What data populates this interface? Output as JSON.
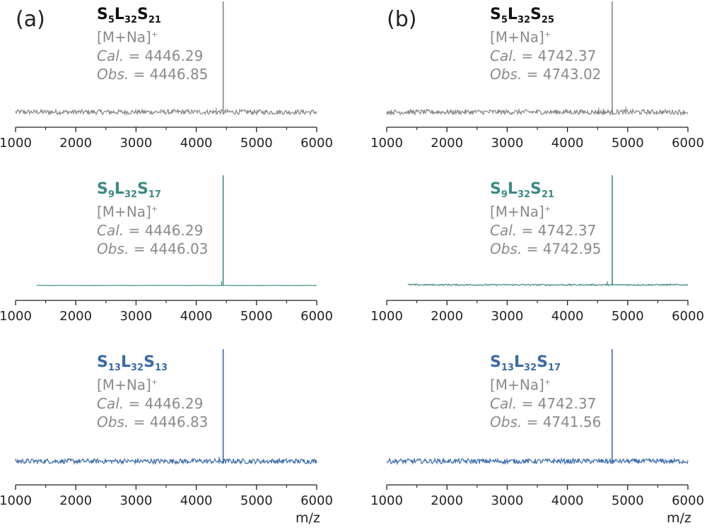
{
  "figure": {
    "panels": [
      {
        "label": "(a)"
      },
      {
        "label": "(b)"
      }
    ],
    "x_axis_label": "m/z"
  },
  "chart_data": [
    {
      "type": "line",
      "panel": "(a)",
      "row": 1,
      "color": "#858585",
      "noise": "high",
      "title_parts": [
        "S",
        "5",
        "L",
        "32",
        "S",
        "21"
      ],
      "title_color": "#111111",
      "ion": "[M+Na]",
      "ion_sup": "+",
      "cal_label": "Cal.",
      "cal_text": " = 4446.29",
      "obs_label": "Obs.",
      "obs_text": " = 4446.85",
      "xlim": [
        1000,
        6000
      ],
      "xticks": [
        1000,
        2000,
        3000,
        4000,
        5000,
        6000
      ],
      "x_start": 1000,
      "peaks": [
        {
          "x": 4446.85,
          "y": 1.0
        },
        {
          "x": 4330,
          "y": 0.06
        }
      ],
      "xlabel": ""
    },
    {
      "type": "line",
      "panel": "(a)",
      "row": 2,
      "color": "#3d8a84",
      "noise": "none",
      "title_parts": [
        "S",
        "9",
        "L",
        "32",
        "S",
        "17"
      ],
      "title_color": "#3d8a84",
      "ion": "[M+Na]",
      "ion_sup": "+",
      "cal_label": "Cal.",
      "cal_text": " = 4446.29",
      "obs_label": "Obs.",
      "obs_text": " = 4446.03",
      "xlim": [
        1000,
        6000
      ],
      "xticks": [
        1000,
        2000,
        3000,
        4000,
        5000,
        6000
      ],
      "x_start": 1350,
      "peaks": [
        {
          "x": 4446.03,
          "y": 1.0
        },
        {
          "x": 4420,
          "y": 0.04
        }
      ],
      "xlabel": ""
    },
    {
      "type": "line",
      "panel": "(a)",
      "row": 3,
      "color": "#3a6aa9",
      "noise": "high",
      "title_parts": [
        "S",
        "13",
        "L",
        "32",
        "S",
        "13"
      ],
      "title_color": "#3a6aa9",
      "ion": "[M+Na]",
      "ion_sup": "+",
      "cal_label": "Cal.",
      "cal_text": " = 4446.29",
      "obs_label": "Obs.",
      "obs_text": " = 4446.83",
      "xlim": [
        1000,
        6000
      ],
      "xticks": [
        1000,
        2000,
        3000,
        4000,
        5000,
        6000
      ],
      "x_start": 1000,
      "peaks": [
        {
          "x": 4446.83,
          "y": 1.0
        },
        {
          "x": 4380,
          "y": 0.06
        }
      ],
      "xlabel": "m/z"
    },
    {
      "type": "line",
      "panel": "(b)",
      "row": 1,
      "color": "#858585",
      "noise": "high",
      "title_parts": [
        "S",
        "5",
        "L",
        "32",
        "S",
        "25"
      ],
      "title_color": "#111111",
      "ion": "[M+Na]",
      "ion_sup": "+",
      "cal_label": "Cal.",
      "cal_text": " = 4742.37",
      "obs_label": "Obs.",
      "obs_text": " = 4743.02",
      "xlim": [
        1000,
        6000
      ],
      "xticks": [
        1000,
        2000,
        3000,
        4000,
        5000,
        6000
      ],
      "x_start": 1000,
      "peaks": [
        {
          "x": 4743.02,
          "y": 1.0
        },
        {
          "x": 4970,
          "y": 0.07
        },
        {
          "x": 4600,
          "y": 0.05
        },
        {
          "x": 4520,
          "y": 0.06
        }
      ],
      "xlabel": ""
    },
    {
      "type": "line",
      "panel": "(b)",
      "row": 2,
      "color": "#3d8a84",
      "noise": "low",
      "title_parts": [
        "S",
        "9",
        "L",
        "32",
        "S",
        "21"
      ],
      "title_color": "#3d8a84",
      "ion": "[M+Na]",
      "ion_sup": "+",
      "cal_label": "Cal.",
      "cal_text": " = 4742.37",
      "obs_label": "Obs.",
      "obs_text": " = 4742.95",
      "xlim": [
        1000,
        6000
      ],
      "xticks": [
        1000,
        2000,
        3000,
        4000,
        5000,
        6000
      ],
      "x_start": 1350,
      "peaks": [
        {
          "x": 4742.95,
          "y": 1.0
        },
        {
          "x": 4660,
          "y": 0.04
        }
      ],
      "xlabel": ""
    },
    {
      "type": "line",
      "panel": "(b)",
      "row": 3,
      "color": "#3a6aa9",
      "noise": "high",
      "title_parts": [
        "S",
        "13",
        "L",
        "32",
        "S",
        "17"
      ],
      "title_color": "#3a6aa9",
      "ion": "[M+Na]",
      "ion_sup": "+",
      "cal_label": "Cal.",
      "cal_text": " = 4742.37",
      "obs_label": "Obs.",
      "obs_text": " = 4741.56",
      "xlim": [
        1000,
        6000
      ],
      "xticks": [
        1000,
        2000,
        3000,
        4000,
        5000,
        6000
      ],
      "x_start": 1000,
      "peaks": [
        {
          "x": 4741.56,
          "y": 1.0
        },
        {
          "x": 4660,
          "y": 0.04
        }
      ],
      "xlabel": "m/z"
    }
  ]
}
